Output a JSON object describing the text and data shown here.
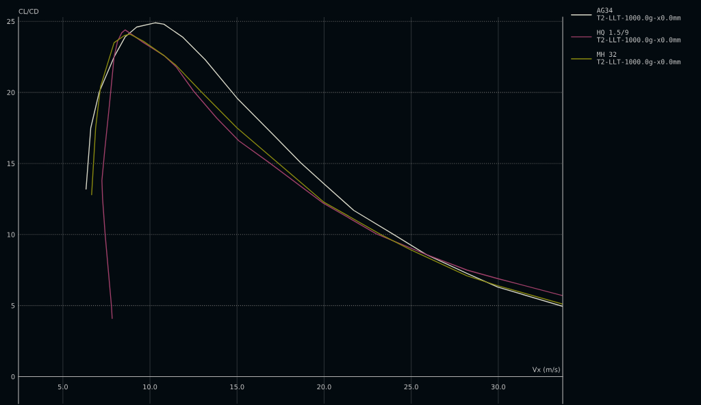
{
  "chart_data": {
    "type": "line",
    "xlabel": "Vx (m/s)",
    "ylabel": "CL/CD",
    "xlim": [
      2.45,
      33.7
    ],
    "ylim": [
      -1.9,
      25.3
    ],
    "xticks": [
      {
        "value": 5,
        "label": "5.0"
      },
      {
        "value": 10,
        "label": "10.0"
      },
      {
        "value": 15,
        "label": "15.0"
      },
      {
        "value": 20,
        "label": "20.0"
      },
      {
        "value": 25,
        "label": "25.0"
      },
      {
        "value": 30,
        "label": "30.0"
      }
    ],
    "yticks": [
      0,
      5,
      10,
      15,
      20,
      25
    ],
    "grid": true,
    "legend": "right",
    "line_style": "solid",
    "marker": "none",
    "series": [
      {
        "name": "AG34\nT2-LLT-1000.0g-x0.0mm",
        "color": "#d8d8c8",
        "x": [
          6.33,
          6.6,
          7.08,
          7.94,
          8.57,
          9.24,
          10.3,
          10.8,
          11.87,
          13.17,
          15.0,
          17.1,
          18.66,
          19.96,
          21.7,
          24.0,
          25.85,
          28.2,
          29.97,
          33.7
        ],
        "values": [
          13.2,
          17.5,
          20.0,
          22.5,
          23.9,
          24.6,
          24.9,
          24.8,
          23.9,
          22.3,
          19.6,
          17.0,
          15.05,
          13.6,
          11.7,
          10.0,
          8.6,
          7.26,
          6.3,
          4.95
        ]
      },
      {
        "name": "HQ 1.5/9\nT2-LLT-1000.0g-x0.0mm",
        "color": "#a0406a",
        "x": [
          7.83,
          7.79,
          7.43,
          7.28,
          7.24,
          7.4,
          7.67,
          7.94,
          8.14,
          8.38,
          8.57,
          8.93,
          9.63,
          10.8,
          11.5,
          12.5,
          13.83,
          15.1,
          16.8,
          19.96,
          23.0,
          25.85,
          28.2,
          29.97,
          33.7
        ],
        "values": [
          4.09,
          4.95,
          9.95,
          12.5,
          13.8,
          15.9,
          19.1,
          22.5,
          23.6,
          24.2,
          24.4,
          24.1,
          23.5,
          22.6,
          21.8,
          20.1,
          18.2,
          16.6,
          15.1,
          12.2,
          10.05,
          8.6,
          7.5,
          6.9,
          5.7
        ]
      },
      {
        "name": "MH 32\nT2-LLT-1000.0g-x0.0mm",
        "color": "#8a8a10",
        "x": [
          6.65,
          6.88,
          7.16,
          7.94,
          8.53,
          8.85,
          9.63,
          10.8,
          11.5,
          12.9,
          15.0,
          17.1,
          19.96,
          23.26,
          24.95,
          28.2,
          29.97,
          33.7
        ],
        "values": [
          12.8,
          17.5,
          20.4,
          23.5,
          24.0,
          24.1,
          23.6,
          22.6,
          21.9,
          20.1,
          17.5,
          15.3,
          12.3,
          10.0,
          8.94,
          7.1,
          6.4,
          5.1
        ]
      }
    ]
  }
}
